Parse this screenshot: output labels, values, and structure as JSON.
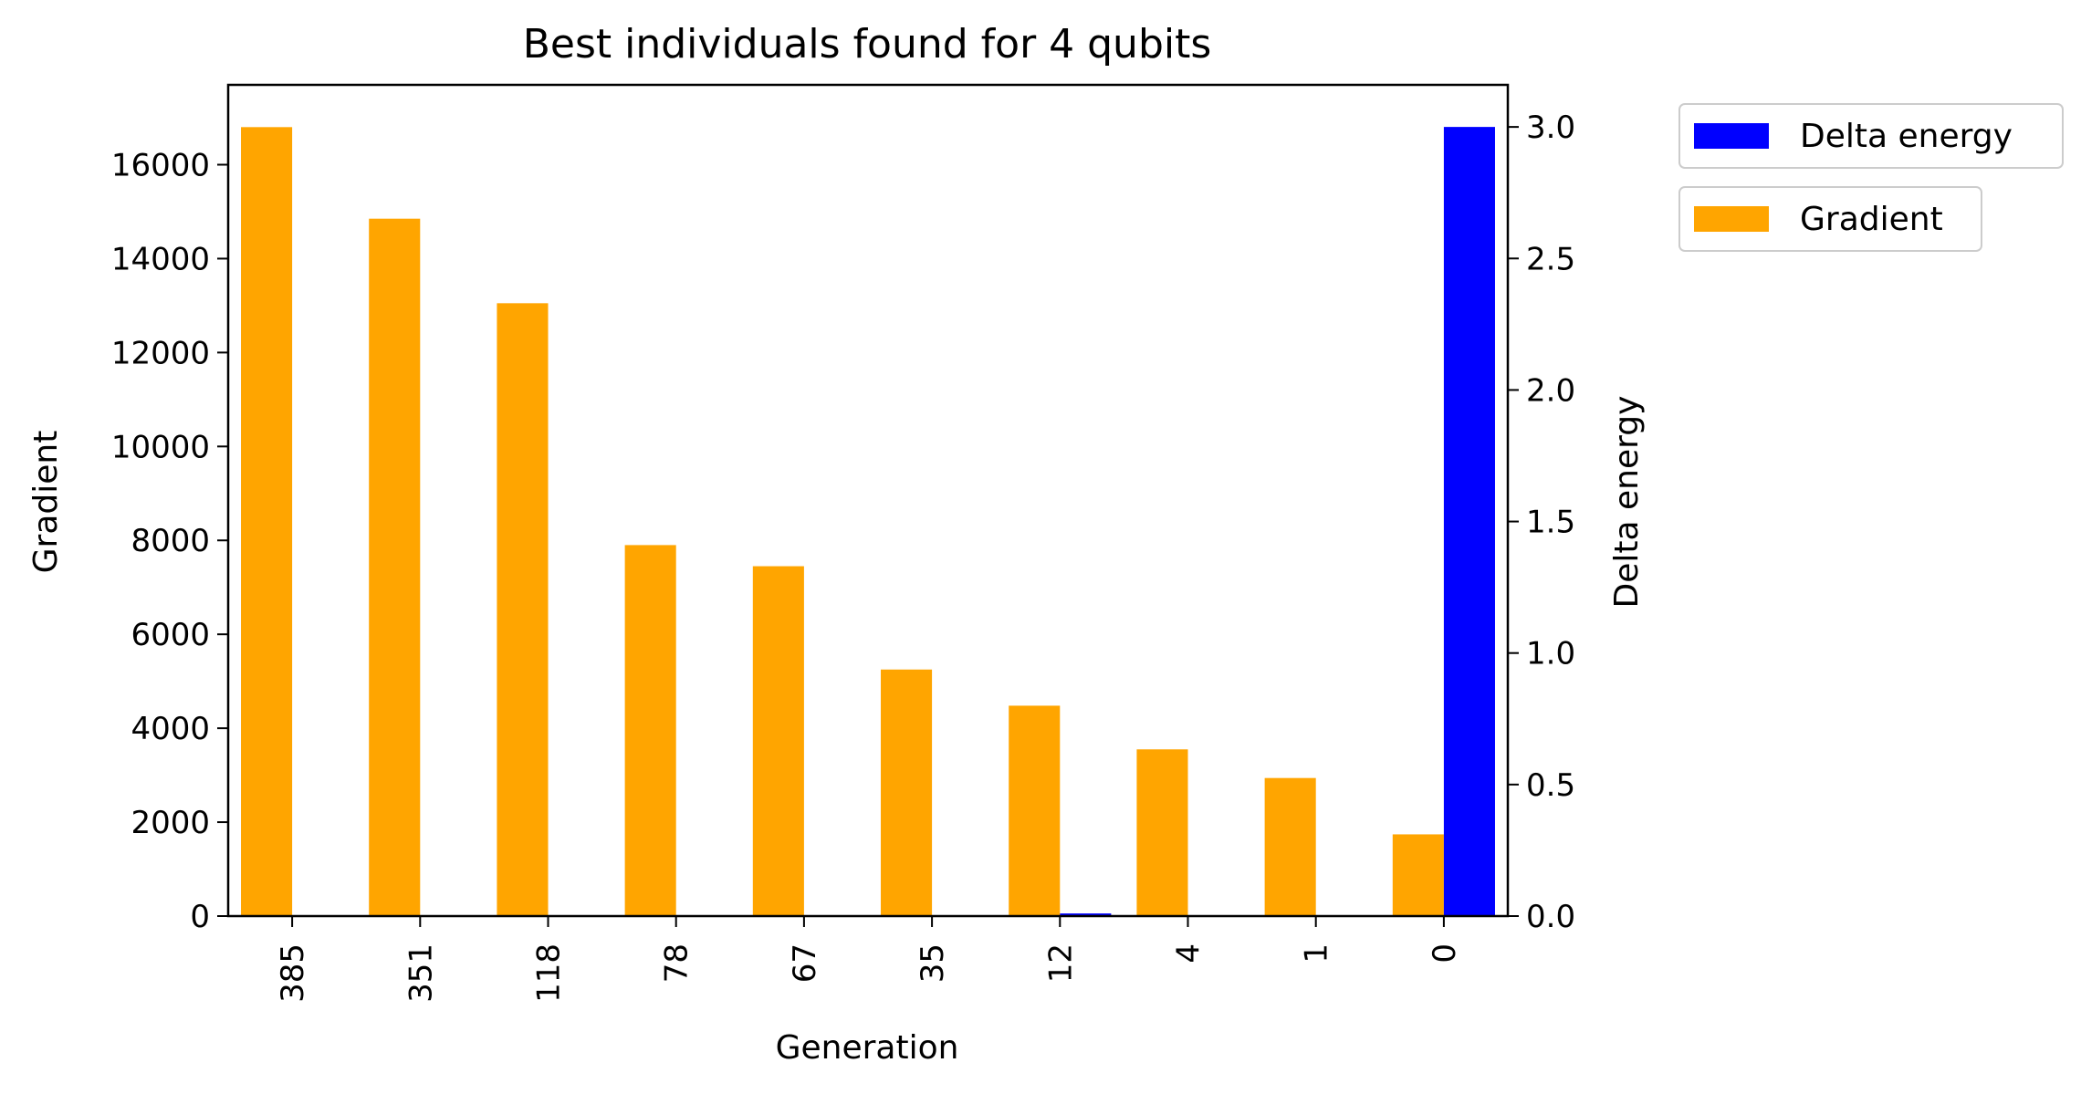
{
  "chart_data": {
    "type": "bar",
    "title": "Best individuals found for 4 qubits",
    "xlabel": "Generation",
    "ylabel_left": "Gradient",
    "ylabel_right": "Delta energy",
    "categories": [
      "385",
      "351",
      "118",
      "78",
      "67",
      "35",
      "12",
      "4",
      "1",
      "0"
    ],
    "ylim_left": [
      0,
      17700
    ],
    "ylim_right": [
      0,
      3.16
    ],
    "yticks_left": [
      0,
      2000,
      4000,
      6000,
      8000,
      10000,
      12000,
      14000,
      16000
    ],
    "yticks_right": [
      0.0,
      0.5,
      1.0,
      1.5,
      2.0,
      2.5,
      3.0
    ],
    "ytick_labels_left": [
      "0",
      "2000",
      "4000",
      "6000",
      "8000",
      "10000",
      "12000",
      "14000",
      "16000"
    ],
    "ytick_labels_right": [
      "0.0",
      "0.5",
      "1.0",
      "1.5",
      "2.0",
      "2.5",
      "3.0"
    ],
    "grid": false,
    "legend_placement": "outside upper right",
    "series": [
      {
        "name": "Gradient",
        "axis": "left",
        "color": "#FFA500",
        "values": [
          16800,
          14850,
          13050,
          7900,
          7450,
          5250,
          4480,
          3550,
          2940,
          1740
        ]
      },
      {
        "name": "Delta energy",
        "axis": "right",
        "color": "#0000FF",
        "values": [
          0,
          0,
          0,
          0,
          0,
          0,
          0.01,
          0,
          0,
          3.0
        ]
      }
    ]
  }
}
